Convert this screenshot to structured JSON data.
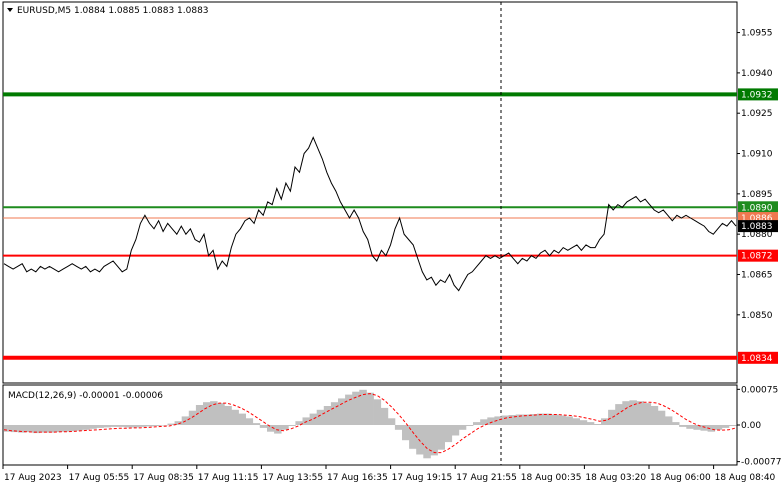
{
  "header": {
    "symbol_line": "EURUSD,M5  1.0884 1.0885 1.0883 1.0883",
    "menu_icon": "triangle-down-icon"
  },
  "chart_data": {
    "type": "line",
    "symbol": "EURUSD",
    "timeframe": "M5",
    "ohlc": {
      "open": 1.0884,
      "high": 1.0885,
      "low": 1.0883,
      "close": 1.0883
    },
    "price_ylim": [
      1.0825,
      1.0966
    ],
    "price_ticks": [
      "1.0955",
      "1.0940",
      "1.0925",
      "1.0910",
      "1.0895",
      "1.0880",
      "1.0865",
      "1.0850"
    ],
    "price_tick_values": [
      1.0955,
      1.094,
      1.0925,
      1.091,
      1.0895,
      1.088,
      1.0865,
      1.085
    ],
    "levels": [
      {
        "price": 1.0932,
        "label": "1.0932",
        "color": "#007a00",
        "width": "thick"
      },
      {
        "price": 1.089,
        "label": "1.0890",
        "color": "#1e8c1e",
        "width": "medium"
      },
      {
        "price": 1.0886,
        "label": "1.0886",
        "color": "#f07850",
        "width": "thin"
      },
      {
        "price": 1.0872,
        "label": "1.0872",
        "color": "#ff0000",
        "width": "medium"
      },
      {
        "price": 1.0834,
        "label": "1.0834",
        "color": "#ff0000",
        "width": "thick"
      }
    ],
    "current_price": {
      "price": 1.0883,
      "label": "1.0883",
      "color": "#000000"
    },
    "vertical_separator_x_label": "17 Aug 21:55",
    "x_labels": [
      "17 Aug 2023",
      "17 Aug 05:55",
      "17 Aug 08:35",
      "17 Aug 11:15",
      "17 Aug 13:55",
      "17 Aug 16:35",
      "17 Aug 19:15",
      "17 Aug 21:55",
      "18 Aug 00:35",
      "18 Aug 03:20",
      "18 Aug 06:00",
      "18 Aug 08:40"
    ],
    "price_series": [
      1.0869,
      1.0868,
      1.0867,
      1.0868,
      1.0869,
      1.0866,
      1.0867,
      1.0866,
      1.0868,
      1.0867,
      1.0868,
      1.0867,
      1.0866,
      1.0867,
      1.0868,
      1.0869,
      1.0868,
      1.0867,
      1.0868,
      1.0866,
      1.0867,
      1.0866,
      1.0868,
      1.0869,
      1.087,
      1.0868,
      1.0866,
      1.0867,
      1.0874,
      1.0878,
      1.0884,
      1.0887,
      1.0884,
      1.0882,
      1.0885,
      1.0881,
      1.0884,
      1.0882,
      1.088,
      1.0883,
      1.088,
      1.0882,
      1.0878,
      1.0877,
      1.088,
      1.0872,
      1.0874,
      1.0867,
      1.087,
      1.0868,
      1.0875,
      1.088,
      1.0882,
      1.0885,
      1.0886,
      1.0884,
      1.0889,
      1.0887,
      1.0892,
      1.0891,
      1.0897,
      1.0893,
      1.0899,
      1.0896,
      1.0905,
      1.0903,
      1.091,
      1.0912,
      1.0916,
      1.0912,
      1.0908,
      1.0903,
      1.0899,
      1.0896,
      1.0892,
      1.0889,
      1.0886,
      1.0889,
      1.0886,
      1.0881,
      1.0878,
      1.0872,
      1.087,
      1.0874,
      1.0872,
      1.0876,
      1.0882,
      1.0886,
      1.088,
      1.0878,
      1.0876,
      1.0871,
      1.0866,
      1.0863,
      1.0864,
      1.0861,
      1.0863,
      1.0862,
      1.0865,
      1.0861,
      1.0859,
      1.0862,
      1.0865,
      1.0866,
      1.0868,
      1.087,
      1.0872,
      1.0871,
      1.0872,
      1.0871,
      1.0872,
      1.0873,
      1.0871,
      1.0869,
      1.0871,
      1.087,
      1.0872,
      1.0871,
      1.0873,
      1.0874,
      1.0872,
      1.0874,
      1.0873,
      1.0875,
      1.0874,
      1.0875,
      1.0876,
      1.0874,
      1.0876,
      1.0875,
      1.0875,
      1.0878,
      1.088,
      1.0891,
      1.0889,
      1.0891,
      1.089,
      1.0892,
      1.0893,
      1.0894,
      1.0892,
      1.0893,
      1.0891,
      1.0889,
      1.0888,
      1.0889,
      1.0887,
      1.0885,
      1.0887,
      1.0886,
      1.0887,
      1.0886,
      1.0885,
      1.0884,
      1.0883,
      1.0881,
      1.088,
      1.0882,
      1.0884,
      1.0883,
      1.0885,
      1.0883
    ],
    "macd": {
      "label": "MACD(12,26,9) -0.00001 -0.00006",
      "ylim": [
        -0.00082,
        0.00082
      ],
      "ticks": [
        "0.00075",
        "0.00",
        "-0.00077"
      ],
      "tick_values": [
        0.00075,
        0.0,
        -0.00077
      ],
      "histogram_color": "#c0c0c0",
      "signal_color": "#ff0000",
      "histogram": [
        -0.00014,
        -0.00015,
        -0.00016,
        -0.00015,
        -0.00017,
        -0.00016,
        -0.00016,
        -0.00015,
        -0.00014,
        -0.00013,
        -0.00012,
        -0.0001,
        -8e-05,
        -6e-05,
        -5e-05,
        -4e-05,
        -4e-05,
        -5e-05,
        -5e-05,
        -4e-05,
        -3e-05,
        -2e-05,
        0.0,
        3e-05,
        8e-05,
        0.00018,
        0.0003,
        0.00042,
        0.00048,
        0.0005,
        0.00046,
        0.0004,
        0.00032,
        0.00024,
        0.00014,
        4e-05,
        -6e-05,
        -0.00014,
        -0.00018,
        -0.0001,
        -2e-05,
        8e-05,
        0.00016,
        0.00024,
        0.00032,
        0.0004,
        0.00048,
        0.00056,
        0.00064,
        0.0007,
        0.00074,
        0.00068,
        0.00054,
        0.00036,
        0.00014,
        -0.0001,
        -0.00032,
        -0.0005,
        -0.00062,
        -0.0007,
        -0.00064,
        -0.00052,
        -0.00036,
        -0.00022,
        -0.0001,
        -2e-05,
        6e-05,
        0.00012,
        0.00016,
        0.00018,
        0.0002,
        0.00021,
        0.00022,
        0.00022,
        0.00023,
        0.00024,
        0.00024,
        0.00022,
        0.0002,
        0.00018,
        0.00014,
        0.0001,
        6e-05,
        2e-05,
        0.00014,
        0.00032,
        0.00044,
        0.0005,
        0.00052,
        0.0005,
        0.00046,
        0.0004,
        0.0003,
        0.00018,
        6e-05,
        -4e-05,
        -8e-05,
        -0.0001,
        -0.00012,
        -0.00014,
        -0.0001,
        -6e-05,
        -2e-05
      ],
      "signal": [
        -0.0001,
        -0.00012,
        -0.00013,
        -0.00014,
        -0.00015,
        -0.00015,
        -0.00015,
        -0.00015,
        -0.00014,
        -0.00014,
        -0.00013,
        -0.00012,
        -0.00011,
        -0.0001,
        -9e-05,
        -8e-05,
        -7e-05,
        -7e-05,
        -6e-05,
        -6e-05,
        -5e-05,
        -4e-05,
        -3e-05,
        -2e-05,
        1e-05,
        6e-05,
        0.00014,
        0.00024,
        0.00034,
        0.00042,
        0.00046,
        0.00046,
        0.00042,
        0.00036,
        0.00028,
        0.00018,
        8e-05,
        -2e-05,
        -0.0001,
        -0.00012,
        -8e-05,
        -2e-05,
        6e-05,
        0.00012,
        0.0002,
        0.00028,
        0.00036,
        0.00044,
        0.00052,
        0.00058,
        0.00064,
        0.00066,
        0.00062,
        0.00052,
        0.00038,
        0.00022,
        4e-05,
        -0.00016,
        -0.00034,
        -0.0005,
        -0.00058,
        -0.00058,
        -0.0005,
        -0.0004,
        -0.00028,
        -0.00018,
        -8e-05,
        0.0,
        6e-05,
        0.00011,
        0.00015,
        0.00017,
        0.00019,
        0.0002,
        0.00021,
        0.00022,
        0.00022,
        0.00022,
        0.00021,
        0.0002,
        0.00018,
        0.00015,
        0.00012,
        8e-05,
        0.0001,
        0.00018,
        0.00028,
        0.00038,
        0.00044,
        0.00048,
        0.00048,
        0.00046,
        0.0004,
        0.00032,
        0.00022,
        0.00012,
        4e-05,
        -2e-05,
        -6e-05,
        -0.0001,
        -0.00011,
        -0.0001,
        -6e-05
      ]
    }
  }
}
